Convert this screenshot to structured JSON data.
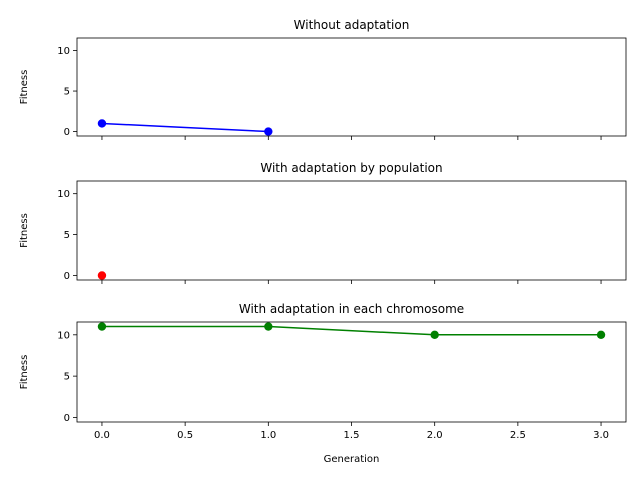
{
  "chart_data": [
    {
      "type": "line",
      "title": "Without adaptation",
      "xlabel": "",
      "ylabel": "Fitness",
      "xlim": [
        -0.15,
        3.15
      ],
      "ylim": [
        -0.55,
        11.55
      ],
      "x_ticks": [
        0,
        0.5,
        1,
        1.5,
        2,
        2.5,
        3
      ],
      "x_tick_labels_shown": false,
      "y_ticks": [
        0,
        5,
        10
      ],
      "grid": false,
      "series": [
        {
          "x": [
            0,
            1
          ],
          "values": [
            1,
            0
          ],
          "color": "#0000ff"
        }
      ]
    },
    {
      "type": "scatter",
      "title": "With adaptation by population",
      "xlabel": "",
      "ylabel": "Fitness",
      "xlim": [
        -0.15,
        3.15
      ],
      "ylim": [
        -0.55,
        11.55
      ],
      "x_ticks": [
        0,
        0.5,
        1,
        1.5,
        2,
        2.5,
        3
      ],
      "x_tick_labels_shown": false,
      "y_ticks": [
        0,
        5,
        10
      ],
      "grid": false,
      "series": [
        {
          "x": [
            0
          ],
          "values": [
            0
          ],
          "color": "#ff0000"
        }
      ]
    },
    {
      "type": "line",
      "title": "With adaptation in each chromosome",
      "xlabel": "Generation",
      "ylabel": "Fitness",
      "xlim": [
        -0.15,
        3.15
      ],
      "ylim": [
        -0.55,
        11.55
      ],
      "x_ticks": [
        0,
        0.5,
        1,
        1.5,
        2,
        2.5,
        3
      ],
      "x_tick_labels": [
        "0.0",
        "0.5",
        "1.0",
        "1.5",
        "2.0",
        "2.5",
        "3.0"
      ],
      "x_tick_labels_shown": true,
      "y_ticks": [
        0,
        5,
        10
      ],
      "grid": false,
      "series": [
        {
          "x": [
            0,
            1,
            2,
            3
          ],
          "values": [
            11,
            11,
            10,
            10
          ],
          "color": "#008000"
        }
      ]
    }
  ]
}
